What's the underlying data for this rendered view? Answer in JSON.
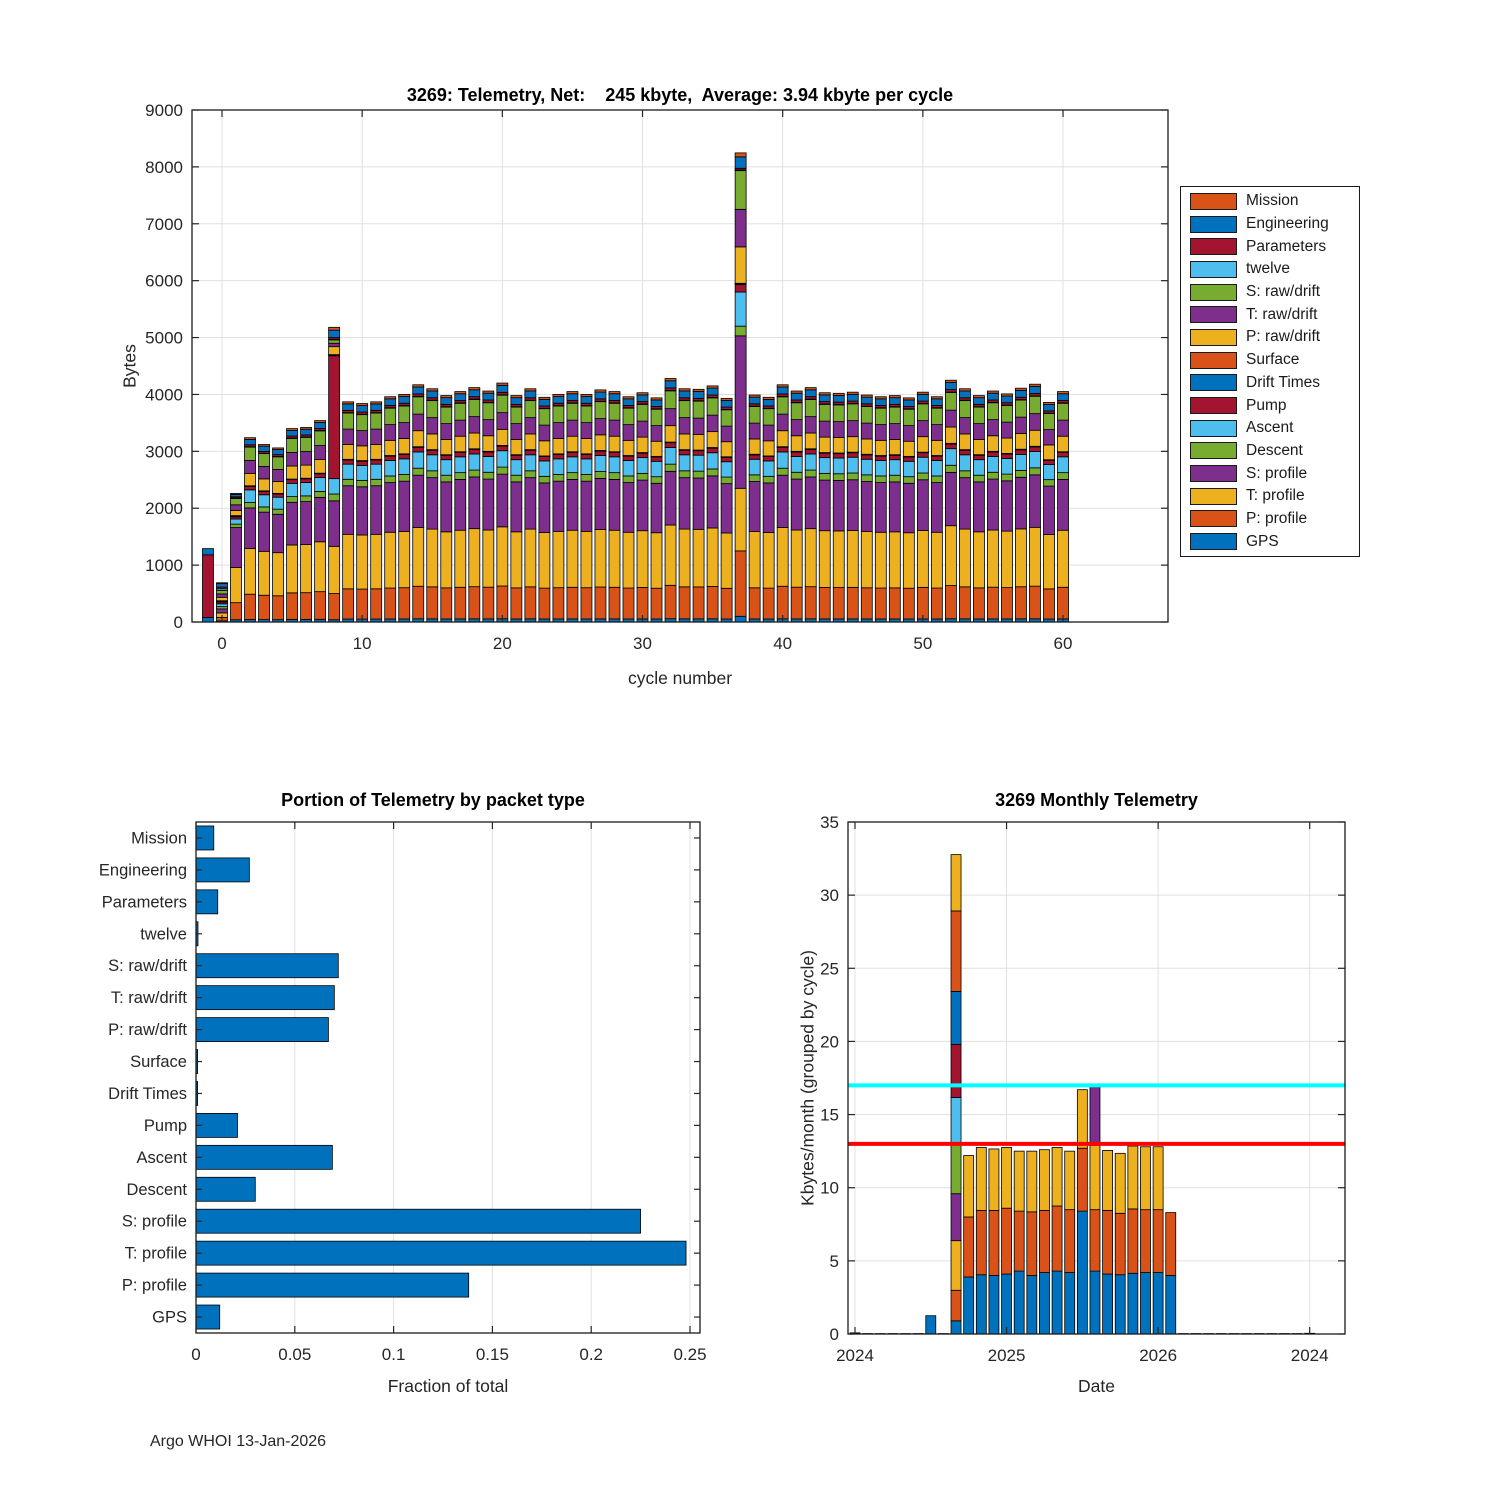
{
  "page": {
    "footer": "Argo WHOI 13-Jan-2026"
  },
  "palette": {
    "blue": "#0072BD",
    "orange": "#D95319",
    "yellow": "#EDB120",
    "purple": "#7E2F8E",
    "green": "#77AC30",
    "lightblue": "#4DBEEE",
    "darkred": "#A2142F",
    "darkbar": "#1a1a1a",
    "cyan": "#00FFFF",
    "red": "#FF0000",
    "grid": "#e0e0e0",
    "axis": "#262626",
    "edge": "#000000"
  },
  "legend": {
    "entries": [
      {
        "label": "Mission",
        "color": "orange"
      },
      {
        "label": "Engineering",
        "color": "blue"
      },
      {
        "label": "Parameters",
        "color": "darkred"
      },
      {
        "label": "twelve",
        "color": "lightblue"
      },
      {
        "label": "S: raw/drift",
        "color": "green"
      },
      {
        "label": "T: raw/drift",
        "color": "purple"
      },
      {
        "label": "P: raw/drift",
        "color": "yellow"
      },
      {
        "label": "Surface",
        "color": "orange"
      },
      {
        "label": "Drift Times",
        "color": "blue"
      },
      {
        "label": "Pump",
        "color": "darkred"
      },
      {
        "label": "Ascent",
        "color": "lightblue"
      },
      {
        "label": "Descent",
        "color": "green"
      },
      {
        "label": "S: profile",
        "color": "purple"
      },
      {
        "label": "T: profile",
        "color": "yellow"
      },
      {
        "label": "P: profile",
        "color": "orange"
      },
      {
        "label": "GPS",
        "color": "blue"
      }
    ]
  },
  "chart_data": [
    {
      "type": "bar",
      "subtype": "stacked-by-cycle",
      "title": "3269: Telemetry, Net:    245 kbyte,  Average: 3.94 kbyte per cycle",
      "xlabel": "cycle number",
      "ylabel": "Bytes",
      "xlim": [
        -2.2,
        67.5
      ],
      "ylim": [
        0,
        9000
      ],
      "xticks": [
        0,
        10,
        20,
        30,
        40,
        50,
        60
      ],
      "yticks": [
        0,
        1000,
        2000,
        3000,
        4000,
        5000,
        6000,
        7000,
        8000,
        9000
      ],
      "grid": true,
      "cycle_start": -1,
      "cycle_end": 60,
      "stack": [
        {
          "name": "GPS",
          "color": "blue",
          "base": 55
        },
        {
          "name": "P: profile",
          "color": "orange",
          "base": 560
        },
        {
          "name": "T: profile",
          "color": "yellow",
          "base": 1010
        },
        {
          "name": "S: profile",
          "color": "purple",
          "base": 900
        },
        {
          "name": "Descent",
          "color": "green",
          "base": 120
        },
        {
          "name": "Ascent",
          "color": "lightblue",
          "base": 280
        },
        {
          "name": "Pump",
          "color": "darkred",
          "base": 82
        },
        {
          "name": "Drift Times",
          "color": "blue",
          "base": 4
        },
        {
          "name": "Surface",
          "color": "orange",
          "base": 4
        },
        {
          "name": "P: raw/drift",
          "color": "yellow",
          "base": 275
        },
        {
          "name": "T: raw/drift",
          "color": "purple",
          "base": 285
        },
        {
          "name": "S: raw/drift",
          "color": "green",
          "base": 300
        },
        {
          "name": "twelve",
          "color": "lightblue",
          "base": 5
        },
        {
          "name": "Parameters",
          "color": "darkred",
          "base": 42
        },
        {
          "name": "Engineering",
          "color": "blue",
          "base": 120
        },
        {
          "name": "Mission",
          "color": "orange",
          "base": 38
        }
      ],
      "base_total": 4080,
      "totals": [
        1290,
        690,
        2250,
        3240,
        3120,
        3060,
        3400,
        3420,
        3540,
        5150,
        3870,
        3840,
        3870,
        3960,
        4000,
        4170,
        4100,
        3980,
        4050,
        4120,
        4060,
        4200,
        3980,
        4100,
        3950,
        4000,
        4050,
        4000,
        4080,
        4050,
        3960,
        4030,
        3940,
        4280,
        4100,
        4090,
        4150,
        3930,
        8250,
        3990,
        3950,
        4170,
        4060,
        4120,
        4030,
        4020,
        4040,
        3990,
        3960,
        3980,
        3940,
        4040,
        3960,
        4250,
        4100,
        3980,
        4060,
        4010,
        4110,
        4180,
        3860,
        4050
      ],
      "overrides": {
        "-1": {
          "GPS": 80,
          "Parameters": 1100,
          "Engineering": 110
        },
        "0": {
          "GPS": 20,
          "P: profile": 60,
          "T: profile": 80,
          "S: profile": 70,
          "Descent": 40,
          "Ascent": 50,
          "Pump": 30,
          "Drift Times": 12,
          "Surface": 12,
          "P: raw/drift": 60,
          "T: raw/drift": 60,
          "S: raw/drift": 60,
          "twelve": 30,
          "Parameters": 30,
          "Engineering": 60,
          "Mission": 16
        },
        "1": {
          "GPS": 40,
          "P: profile": 300,
          "T: profile": 620,
          "S: profile": 700,
          "Descent": 60,
          "Ascent": 90,
          "Pump": 40,
          "Drift Times": 10,
          "Surface": 10,
          "P: raw/drift": 90,
          "T: raw/drift": 100,
          "S: raw/drift": 110,
          "twelve": 12,
          "Parameters": 20,
          "Engineering": 40,
          "Mission": 18
        },
        "8": {
          "GPS": 40,
          "P: profile": 460,
          "T: profile": 830,
          "S: profile": 800,
          "Descent": 120,
          "Ascent": 270,
          "Pump": 2160,
          "Drift Times": 10,
          "Surface": 10,
          "P: raw/drift": 140,
          "T: raw/drift": 60,
          "S: raw/drift": 60,
          "twelve": 10,
          "Parameters": 30,
          "Engineering": 130,
          "Mission": 50
        },
        "37": {
          "GPS": 100,
          "P: profile": 1150,
          "T: profile": 1100,
          "S: profile": 2680,
          "Descent": 170,
          "Ascent": 600,
          "Pump": 130,
          "Drift Times": 12,
          "Surface": 12,
          "P: raw/drift": 640,
          "T: raw/drift": 660,
          "S: raw/drift": 680,
          "twelve": 12,
          "Parameters": 30,
          "Engineering": 200,
          "Mission": 70
        }
      }
    },
    {
      "type": "bar",
      "subtype": "horizontal",
      "title": "Portion of Telemetry by packet type",
      "xlabel": "Fraction of total",
      "categories": [
        "Mission",
        "Engineering",
        "Parameters",
        "twelve",
        "S: raw/drift",
        "T: raw/drift",
        "P: raw/drift",
        "Surface",
        "Drift Times",
        "Pump",
        "Ascent",
        "Descent",
        "S: profile",
        "T: profile",
        "P: profile",
        "GPS"
      ],
      "values": [
        0.009,
        0.027,
        0.011,
        0.001,
        0.072,
        0.07,
        0.067,
        0.0008,
        0.0008,
        0.021,
        0.069,
        0.03,
        0.225,
        0.248,
        0.138,
        0.012
      ],
      "xlim": [
        0,
        0.25
      ],
      "xticks": [
        0,
        0.05,
        0.1,
        0.15,
        0.2,
        0.25
      ],
      "bar_color": "blue",
      "grid": true
    },
    {
      "type": "bar",
      "subtype": "stacked-monthly",
      "title": "3269 Monthly Telemetry",
      "xlabel": "Date",
      "ylabel": "Kbytes/month (grouped by cycle)",
      "ylim": [
        0,
        35
      ],
      "yticks": [
        0,
        5,
        10,
        15,
        20,
        25,
        30,
        35
      ],
      "xtick_labels": [
        "2024",
        "2025",
        "2026",
        "2024"
      ],
      "xtick_months": [
        0,
        12,
        24,
        36
      ],
      "grid": true,
      "hlines": [
        {
          "y": 17,
          "color": "cyan"
        },
        {
          "y": 13,
          "color": "red"
        }
      ],
      "bars": [
        {
          "m": 0,
          "segs": [
            [
              "darkbar",
              0.08
            ]
          ]
        },
        {
          "m": 1,
          "segs": [
            [
              "darkbar",
              0.03
            ]
          ]
        },
        {
          "m": 2,
          "segs": [
            [
              "darkbar",
              0.03
            ]
          ]
        },
        {
          "m": 3,
          "segs": [
            [
              "darkbar",
              0.03
            ]
          ]
        },
        {
          "m": 4,
          "segs": [
            [
              "darkbar",
              0.03
            ]
          ]
        },
        {
          "m": 5,
          "segs": [
            [
              "darkbar",
              0.03
            ]
          ]
        },
        {
          "m": 6,
          "segs": [
            [
              "blue",
              1.25
            ]
          ]
        },
        {
          "m": 7,
          "segs": [
            [
              "darkbar",
              0.03
            ]
          ]
        },
        {
          "m": 8,
          "segs": [
            [
              "blue",
              0.9
            ],
            [
              "orange",
              2.09
            ],
            [
              "yellow",
              3.39
            ],
            [
              "purple",
              3.21
            ],
            [
              "green",
              3.35
            ],
            [
              "lightblue",
              3.23
            ],
            [
              "darkred",
              3.62
            ],
            [
              "blue",
              3.63
            ],
            [
              "orange",
              5.5
            ],
            [
              "yellow",
              3.85
            ]
          ]
        },
        {
          "m": 9,
          "segs": [
            [
              "blue",
              3.9
            ],
            [
              "orange",
              4.1
            ],
            [
              "yellow",
              4.2
            ]
          ]
        },
        {
          "m": 10,
          "segs": [
            [
              "blue",
              4.05
            ],
            [
              "orange",
              4.4
            ],
            [
              "yellow",
              4.3
            ]
          ]
        },
        {
          "m": 11,
          "segs": [
            [
              "blue",
              4.0
            ],
            [
              "orange",
              4.45
            ],
            [
              "yellow",
              4.2
            ]
          ]
        },
        {
          "m": 12,
          "segs": [
            [
              "blue",
              4.1
            ],
            [
              "orange",
              4.5
            ],
            [
              "yellow",
              4.15
            ]
          ]
        },
        {
          "m": 13,
          "segs": [
            [
              "blue",
              4.3
            ],
            [
              "orange",
              4.1
            ],
            [
              "yellow",
              4.1
            ]
          ]
        },
        {
          "m": 14,
          "segs": [
            [
              "blue",
              4.0
            ],
            [
              "orange",
              4.35
            ],
            [
              "yellow",
              4.15
            ]
          ]
        },
        {
          "m": 15,
          "segs": [
            [
              "blue",
              4.2
            ],
            [
              "orange",
              4.25
            ],
            [
              "yellow",
              4.15
            ]
          ]
        },
        {
          "m": 16,
          "segs": [
            [
              "blue",
              4.3
            ],
            [
              "orange",
              4.45
            ],
            [
              "yellow",
              4.0
            ]
          ]
        },
        {
          "m": 17,
          "segs": [
            [
              "blue",
              4.2
            ],
            [
              "orange",
              4.3
            ],
            [
              "yellow",
              4.0
            ]
          ]
        },
        {
          "m": 18,
          "segs": [
            [
              "blue",
              8.4
            ],
            [
              "orange",
              4.3
            ],
            [
              "yellow",
              4.0
            ]
          ]
        },
        {
          "m": 19,
          "segs": [
            [
              "blue",
              4.3
            ],
            [
              "orange",
              4.2
            ],
            [
              "yellow",
              4.4
            ],
            [
              "purple",
              4.0
            ]
          ]
        },
        {
          "m": 20,
          "segs": [
            [
              "blue",
              4.1
            ],
            [
              "orange",
              4.35
            ],
            [
              "yellow",
              4.1
            ]
          ]
        },
        {
          "m": 21,
          "segs": [
            [
              "blue",
              4.05
            ],
            [
              "orange",
              4.2
            ],
            [
              "yellow",
              4.1
            ]
          ]
        },
        {
          "m": 22,
          "segs": [
            [
              "blue",
              4.15
            ],
            [
              "orange",
              4.4
            ],
            [
              "yellow",
              4.3
            ]
          ]
        },
        {
          "m": 23,
          "segs": [
            [
              "blue",
              4.2
            ],
            [
              "orange",
              4.3
            ],
            [
              "yellow",
              4.3
            ]
          ]
        },
        {
          "m": 24,
          "segs": [
            [
              "blue",
              4.2
            ],
            [
              "orange",
              4.3
            ],
            [
              "yellow",
              4.3
            ]
          ]
        },
        {
          "m": 25,
          "segs": [
            [
              "blue",
              4.0
            ],
            [
              "orange",
              4.3
            ]
          ]
        },
        {
          "m": 26,
          "segs": [
            [
              "darkbar",
              0.03
            ]
          ]
        },
        {
          "m": 27,
          "segs": [
            [
              "darkbar",
              0.03
            ]
          ]
        },
        {
          "m": 28,
          "segs": [
            [
              "darkbar",
              0.03
            ]
          ]
        },
        {
          "m": 29,
          "segs": [
            [
              "darkbar",
              0.03
            ]
          ]
        },
        {
          "m": 30,
          "segs": [
            [
              "darkbar",
              0.03
            ]
          ]
        },
        {
          "m": 31,
          "segs": [
            [
              "darkbar",
              0.03
            ]
          ]
        },
        {
          "m": 32,
          "segs": [
            [
              "darkbar",
              0.03
            ]
          ]
        },
        {
          "m": 33,
          "segs": [
            [
              "darkbar",
              0.03
            ]
          ]
        },
        {
          "m": 34,
          "segs": [
            [
              "darkbar",
              0.03
            ]
          ]
        },
        {
          "m": 35,
          "segs": [
            [
              "darkbar",
              0.03
            ]
          ]
        },
        {
          "m": 36,
          "segs": [
            [
              "darkbar",
              0.05
            ]
          ]
        }
      ]
    }
  ]
}
